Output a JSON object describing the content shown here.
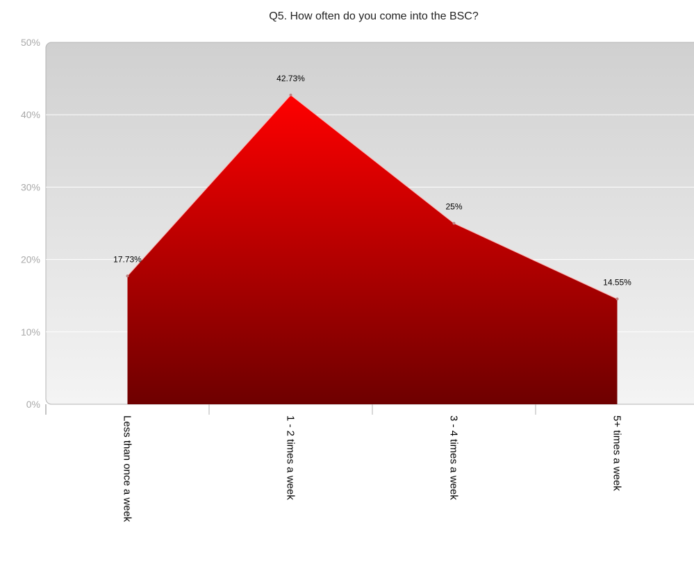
{
  "chart_data": {
    "type": "area",
    "title": "Q5. How often do you come into the BSC?",
    "categories": [
      "Less than once a week",
      "1 - 2 times a week",
      "3 - 4 times a week",
      "5+ times a week"
    ],
    "series": [
      {
        "values": [
          17.73,
          42.73,
          25,
          14.55
        ],
        "labels": [
          "17.73%",
          "42.73%",
          "25%",
          "14.55%"
        ]
      }
    ],
    "y_ticks": [
      "0%",
      "10%",
      "20%",
      "30%",
      "40%",
      "50%"
    ],
    "ylim": [
      0,
      50
    ],
    "grid": true,
    "colors": {
      "area_top": "#ff0000",
      "area_bottom": "#6e0000",
      "plot_bg_top": "#d0d0d0",
      "plot_bg_bottom": "#f4f4f4",
      "gridline": "#ffffff",
      "tick_label": "#a9a9a9"
    }
  }
}
